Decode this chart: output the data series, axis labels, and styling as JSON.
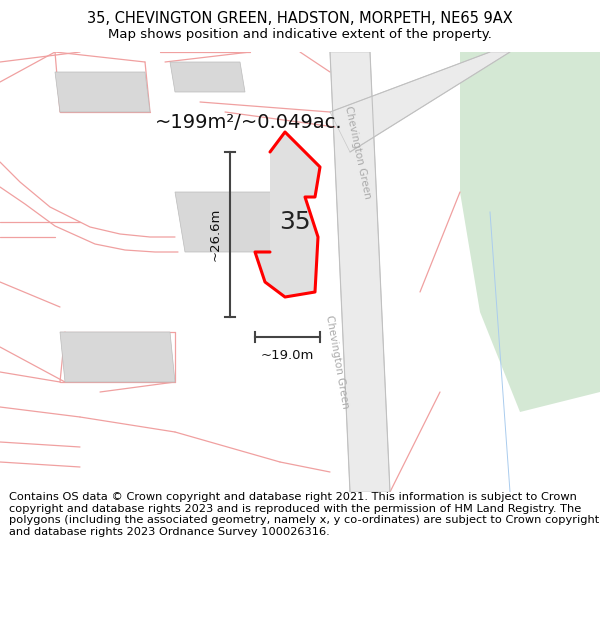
{
  "title_line1": "35, CHEVINGTON GREEN, HADSTON, MORPETH, NE65 9AX",
  "title_line2": "Map shows position and indicative extent of the property.",
  "footer_text": "Contains OS data © Crown copyright and database right 2021. This information is subject to Crown copyright and database rights 2023 and is reproduced with the permission of HM Land Registry. The polygons (including the associated geometry, namely x, y co-ordinates) are subject to Crown copyright and database rights 2023 Ordnance Survey 100026316.",
  "area_label": "~199m²/~0.049ac.",
  "number_label": "35",
  "dim_width_label": "~19.0m",
  "dim_height_label": "~26.6m",
  "map_bg": "#ffffff",
  "road_color": "#e8e8e8",
  "road_edge_color": "#c0c0c0",
  "building_fill": "#d8d8d8",
  "building_edge": "#bbbbbb",
  "plot_fill_color": "#e0e0e0",
  "plot_outline_color": "#ff0000",
  "other_outlines_color": "#f0a0a0",
  "green_area_color": "#d4e8d4",
  "road_text_color": "#aaaaaa",
  "dim_line_color": "#444444",
  "title_fontsize": 10.5,
  "subtitle_fontsize": 9.5,
  "area_fontsize": 14,
  "number_fontsize": 18,
  "footer_fontsize": 8.2
}
